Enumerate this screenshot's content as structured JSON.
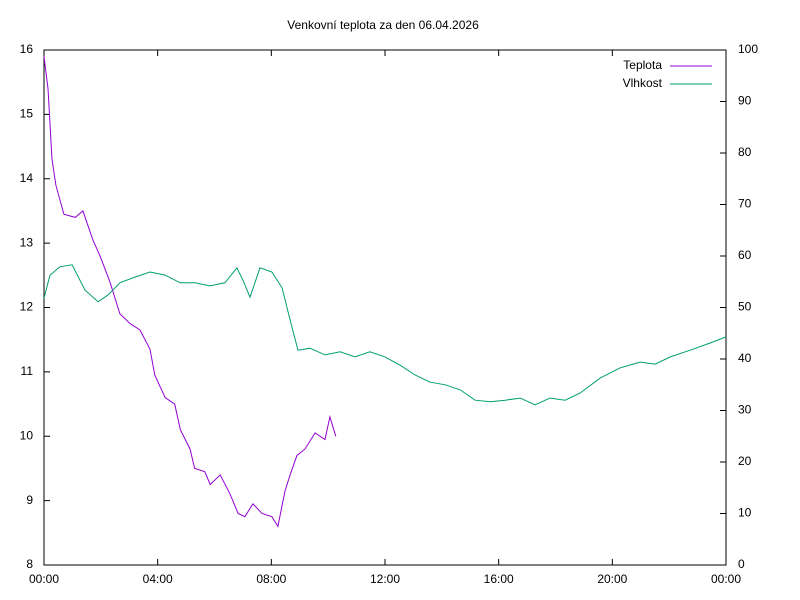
{
  "chart_data": {
    "type": "line",
    "title": "Venkovní teplota za den 06.04.2026",
    "xlim": [
      0,
      24
    ],
    "xticks": [
      {
        "value": 0,
        "label": "00:00"
      },
      {
        "value": 4,
        "label": "04:00"
      },
      {
        "value": 8,
        "label": "08:00"
      },
      {
        "value": 12,
        "label": "12:00"
      },
      {
        "value": 16,
        "label": "16:00"
      },
      {
        "value": 20,
        "label": "20:00"
      },
      {
        "value": 24,
        "label": "00:00"
      }
    ],
    "ylim": [
      8,
      16
    ],
    "yticks": [
      8,
      9,
      10,
      11,
      12,
      13,
      14,
      15,
      16
    ],
    "y2lim": [
      0,
      100
    ],
    "y2ticks": [
      0,
      10,
      20,
      30,
      40,
      50,
      60,
      70,
      80,
      90,
      100
    ],
    "legend": "top-right",
    "series": [
      {
        "name": "Teplota",
        "color": "#9400d3",
        "x": [
          0,
          0.14,
          0.28,
          0.42,
          0.7,
          1.1,
          1.37,
          1.72,
          1.97,
          2.32,
          2.67,
          3.03,
          3.38,
          3.73,
          3.9,
          4.26,
          4.6,
          4.8,
          5.14,
          5.3,
          5.66,
          5.85,
          6.2,
          6.55,
          6.83,
          7.07,
          7.35,
          7.67,
          8.02,
          8.23,
          8.48,
          8.66,
          8.9,
          9.18,
          9.54,
          9.89,
          10.06,
          10.27
        ],
        "values": [
          15.9,
          15.4,
          14.3,
          13.9,
          13.45,
          13.4,
          13.5,
          13.05,
          12.8,
          12.4,
          11.9,
          11.75,
          11.65,
          11.35,
          10.95,
          10.6,
          10.5,
          10.1,
          9.8,
          9.5,
          9.45,
          9.25,
          9.4,
          9.1,
          8.8,
          8.75,
          8.95,
          8.8,
          8.75,
          8.6,
          9.15,
          9.4,
          9.7,
          9.8,
          10.05,
          9.95,
          10.3,
          10.0
        ]
      },
      {
        "name": "Vlhkost",
        "color": "#009e73",
        "axis": "y2",
        "x": [
          0,
          0.21,
          0.56,
          0.99,
          1.44,
          1.9,
          2.25,
          2.67,
          3.2,
          3.73,
          4.26,
          4.79,
          5.31,
          5.84,
          6.37,
          6.79,
          7.0,
          7.25,
          7.6,
          8.02,
          8.38,
          8.66,
          8.94,
          9.36,
          9.89,
          10.42,
          10.94,
          11.47,
          12.0,
          12.53,
          13.06,
          13.59,
          14.12,
          14.65,
          15.17,
          15.7,
          16.23,
          16.76,
          17.28,
          17.81,
          18.34,
          18.87,
          19.57,
          20.28,
          20.98,
          21.51,
          22.04,
          22.74,
          23.44,
          24
        ],
        "values": [
          51.8,
          56.3,
          57.9,
          58.3,
          53.4,
          51.1,
          52.4,
          54.8,
          55.9,
          56.9,
          56.3,
          54.8,
          54.8,
          54.2,
          54.8,
          57.7,
          55.3,
          52.0,
          57.7,
          56.9,
          53.8,
          47.6,
          41.7,
          42.1,
          40.8,
          41.4,
          40.4,
          41.4,
          40.4,
          38.8,
          36.9,
          35.5,
          35.0,
          34.0,
          32.0,
          31.7,
          32.0,
          32.4,
          31.1,
          32.4,
          32.0,
          33.4,
          36.3,
          38.3,
          39.4,
          39.0,
          40.4,
          41.7,
          43.1,
          44.3
        ]
      }
    ]
  }
}
